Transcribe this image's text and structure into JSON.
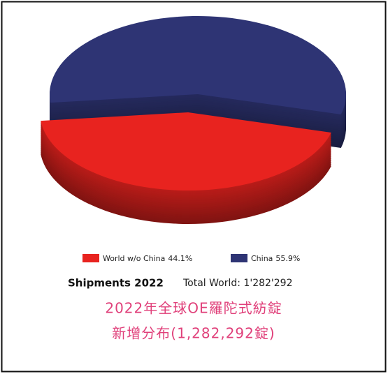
{
  "chart_data": {
    "type": "pie",
    "categories": [
      "World w/o China",
      "China"
    ],
    "values": [
      44.1,
      55.9
    ],
    "value_labels": [
      "44.1%",
      "55.9%"
    ],
    "colors": [
      "#e8231f",
      "#2e3474"
    ],
    "legend": "bottom",
    "footer": {
      "left": "Shipments 2022",
      "right": "Total World: 1'282'292"
    },
    "caption": [
      "2022年全球OE羅陀式紡錠",
      "新增分布(1,282,292錠)"
    ]
  }
}
